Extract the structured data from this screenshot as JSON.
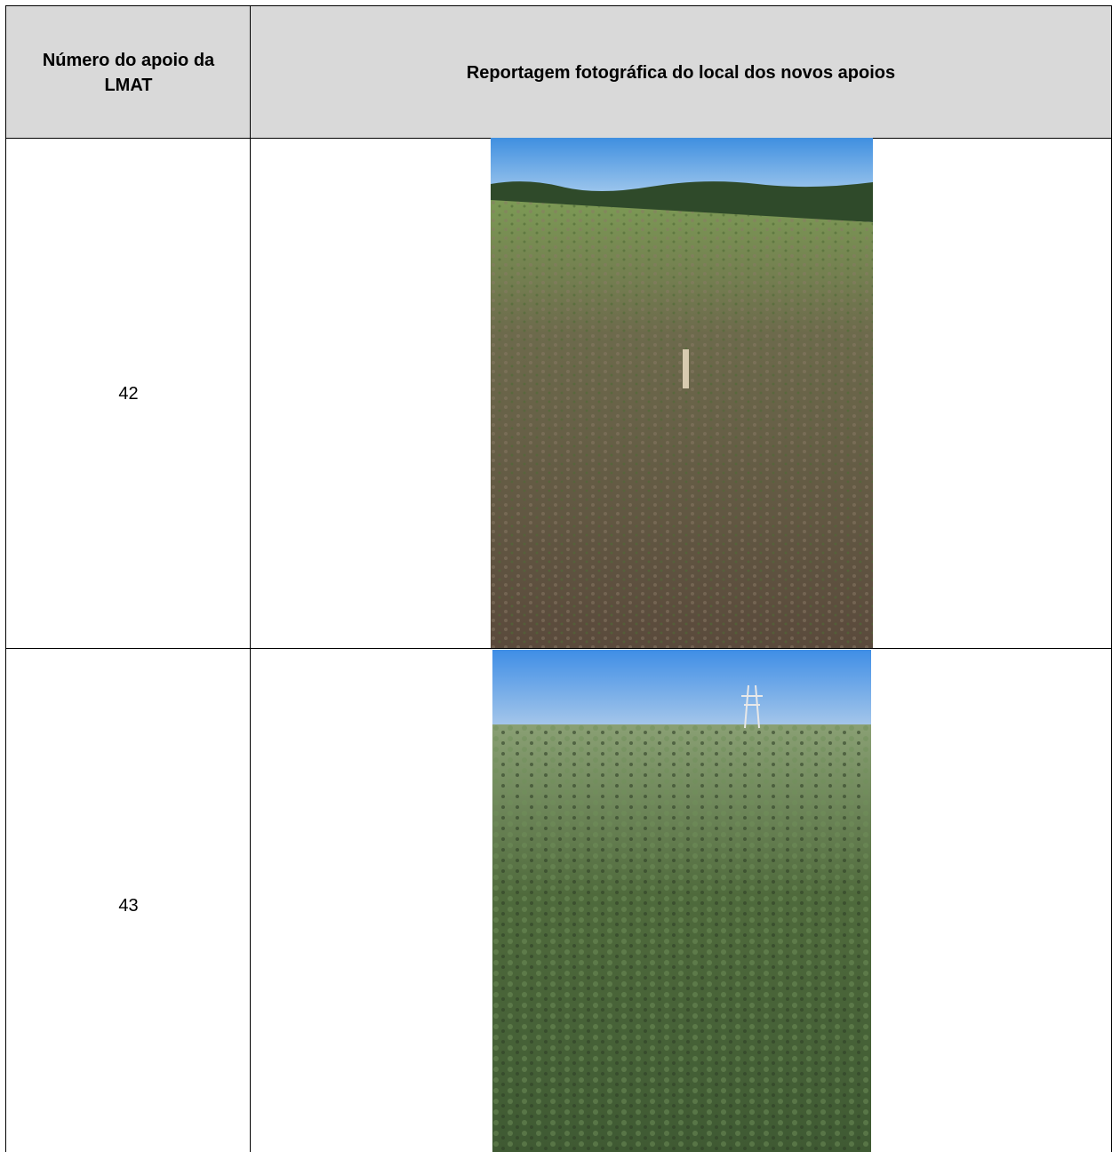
{
  "table": {
    "header": [
      "Número do apoio da LMAT",
      "Reportagem fotográfica do local dos novos apoios"
    ],
    "rows": [
      [
        "42"
      ],
      [
        "43"
      ]
    ]
  }
}
